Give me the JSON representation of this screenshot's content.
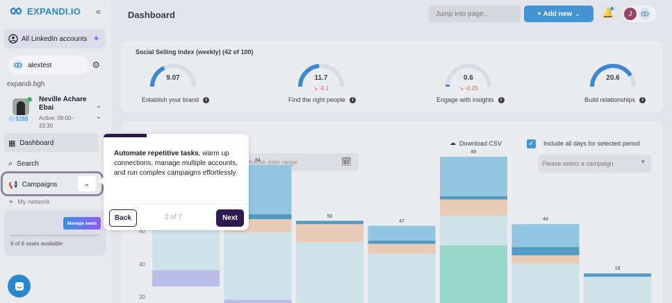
{
  "brand": {
    "logo": "EXPANDI.IO",
    "accent": "#2a87cf"
  },
  "sidebar": {
    "all_accounts": "All LinkedIn accounts",
    "account_chip": "alextest",
    "workspace": "expandi.bgh",
    "profile": {
      "name": "Neville Achare Ebai",
      "active": "Active: 09:00–23:30",
      "connections": "9288"
    },
    "nav": [
      {
        "label": "Dashboard",
        "icon": "grid-icon"
      },
      {
        "label": "Search",
        "icon": "search-icon"
      },
      {
        "label": "Campaigns",
        "icon": "megaphone-icon"
      },
      {
        "label": "My network",
        "icon": "network-icon"
      }
    ],
    "seats": {
      "manage_label": "Manage seats",
      "available": "6 of 6 seats available"
    }
  },
  "header": {
    "title": "Dashboard",
    "jump_placeholder": "Jump into page...",
    "add_new": "+ Add new",
    "user_initial": "J"
  },
  "ssi": {
    "title": "Social Selling Index (weekly) (42 of 100)",
    "items": [
      {
        "value": "9.07",
        "delta": "",
        "label": "Establish your brand",
        "fraction": 0.36
      },
      {
        "value": "11.7",
        "delta": "-0.1",
        "label": "Find the right people",
        "fraction": 0.47
      },
      {
        "value": "0.6",
        "delta": "-0.25",
        "label": "Engage with insights",
        "fraction": 0.03
      },
      {
        "value": "20.6",
        "delta": "",
        "label": "Build relationships",
        "fraction": 0.82
      }
    ]
  },
  "controls": {
    "download": "Download CSV",
    "include_all_days": "Include all days for selected period",
    "date_placeholder": "hoose date range",
    "campaign_placeholder": "Please select a campaign"
  },
  "tour": {
    "bold": "Automate repetitive tasks",
    "text": ", warm up connections, manage multiple accounts, and run complex campaigns effortlessly.",
    "back": "Back",
    "step": "2 of 7",
    "next": "Next"
  },
  "chart_data": {
    "type": "bar",
    "stacked": true,
    "y_ticks_visible": [
      "60",
      "40",
      "20"
    ],
    "ylim": [
      0,
      100
    ],
    "bar_totals": [
      null,
      84,
      50,
      47,
      89,
      48,
      18
    ],
    "segments": [
      {
        "color": "#85c1e0",
        "values": [
          null,
          30,
          0,
          9,
          24,
          14,
          0
        ]
      },
      {
        "color": "#3a8fbd",
        "values": [
          null,
          3,
          2,
          2,
          2,
          5,
          2
        ]
      },
      {
        "color": "#ecc9b0",
        "values": [
          null,
          8,
          11,
          6,
          10,
          5,
          0
        ]
      },
      {
        "color": "#cde2ea",
        "values": [
          null,
          41,
          37,
          30,
          18,
          24,
          16
        ]
      },
      {
        "color": "#8bd8c4",
        "values": [
          null,
          0,
          0,
          0,
          35,
          0,
          0
        ]
      },
      {
        "color": "#b6b8ea",
        "values": [
          null,
          2,
          0,
          0,
          0,
          0,
          0
        ]
      }
    ],
    "partial_first_bar": {
      "orange": [
        55,
        62
      ],
      "light": [
        20,
        54
      ],
      "purple": [
        10,
        20
      ]
    }
  }
}
